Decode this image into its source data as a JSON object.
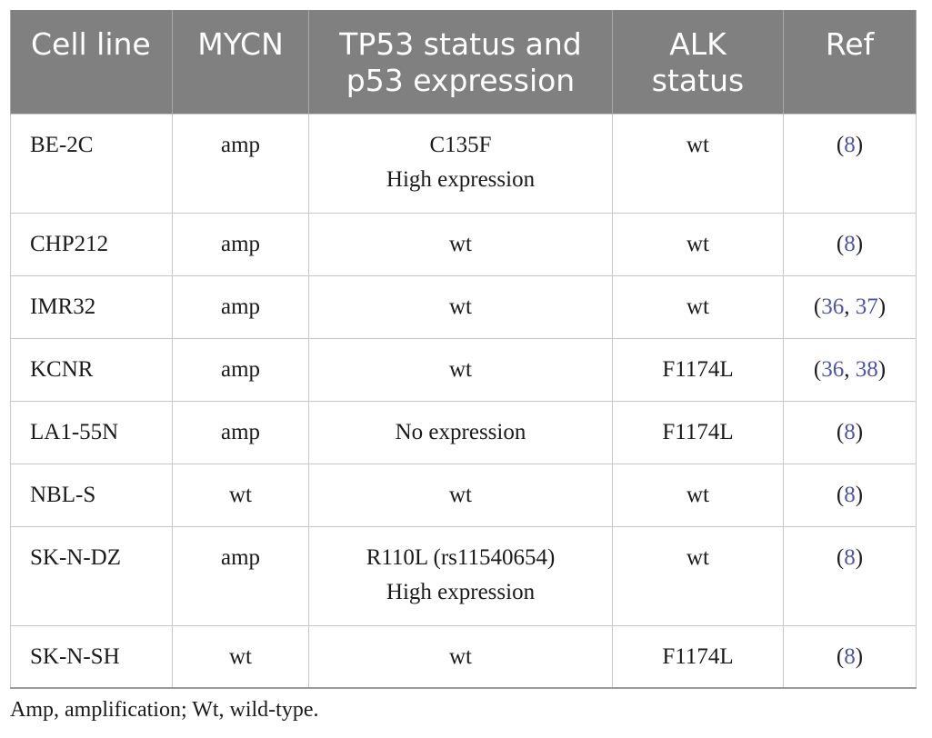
{
  "headers": {
    "cell_line": "Cell line",
    "mycn": "MYCN",
    "tp53_line1": "TP53 status and",
    "tp53_line2": "p53 expression",
    "alk_line1": "ALK",
    "alk_line2": "status",
    "ref": "Ref"
  },
  "rows": [
    {
      "cell_line": "BE-2C",
      "mycn": "amp",
      "tp53_line1": "C135F",
      "tp53_line2": "High expression",
      "alk": "wt",
      "ref_open": "(",
      "ref1": "8",
      "ref_sep": "",
      "ref2": "",
      "ref_close": ")"
    },
    {
      "cell_line": "CHP212",
      "mycn": "amp",
      "tp53_line1": "wt",
      "tp53_line2": "",
      "alk": "wt",
      "ref_open": "(",
      "ref1": "8",
      "ref_sep": "",
      "ref2": "",
      "ref_close": ")"
    },
    {
      "cell_line": "IMR32",
      "mycn": "amp",
      "tp53_line1": "wt",
      "tp53_line2": "",
      "alk": "wt",
      "ref_open": "(",
      "ref1": "36",
      "ref_sep": ", ",
      "ref2": "37",
      "ref_close": ")"
    },
    {
      "cell_line": "KCNR",
      "mycn": "amp",
      "tp53_line1": "wt",
      "tp53_line2": "",
      "alk": "F1174L",
      "ref_open": "(",
      "ref1": "36",
      "ref_sep": ", ",
      "ref2": "38",
      "ref_close": ")"
    },
    {
      "cell_line": "LA1-55N",
      "mycn": "amp",
      "tp53_line1": "No expression",
      "tp53_line2": "",
      "alk": "F1174L",
      "ref_open": "(",
      "ref1": "8",
      "ref_sep": "",
      "ref2": "",
      "ref_close": ")"
    },
    {
      "cell_line": "NBL-S",
      "mycn": "wt",
      "tp53_line1": "wt",
      "tp53_line2": "",
      "alk": "wt",
      "ref_open": "(",
      "ref1": "8",
      "ref_sep": "",
      "ref2": "",
      "ref_close": ")"
    },
    {
      "cell_line": "SK-N-DZ",
      "mycn": "amp",
      "tp53_line1": "R110L (rs11540654)",
      "tp53_line2": "High expression",
      "alk": "wt",
      "ref_open": "(",
      "ref1": "8",
      "ref_sep": "",
      "ref2": "",
      "ref_close": ")"
    },
    {
      "cell_line": "SK-N-SH",
      "mycn": "wt",
      "tp53_line1": "wt",
      "tp53_line2": "",
      "alk": "F1174L",
      "ref_open": "(",
      "ref1": "8",
      "ref_sep": "",
      "ref2": "",
      "ref_close": ")"
    }
  ],
  "footnote": "Amp, amplification; Wt, wild-type.",
  "colors": {
    "header_bg": "#808080",
    "header_text": "#ffffff",
    "link": "#4f54a6",
    "border": "#c7c7c7"
  }
}
